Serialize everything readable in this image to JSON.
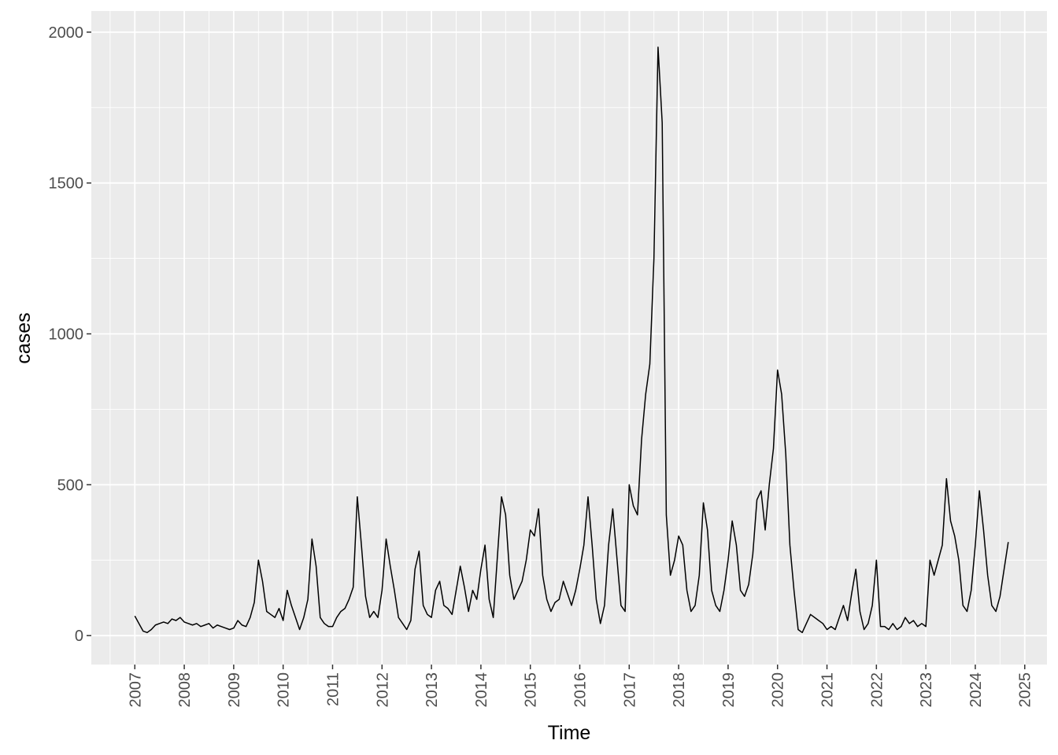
{
  "chart_data": {
    "type": "line",
    "x_label": "Time",
    "y_label": "cases",
    "color": "#000000",
    "grid": true,
    "xlim": [
      2006.12,
      2025.45
    ],
    "ylim": [
      -96,
      2070
    ],
    "xticks": [
      2007,
      2008,
      2009,
      2010,
      2011,
      2012,
      2013,
      2014,
      2015,
      2016,
      2017,
      2018,
      2019,
      2020,
      2021,
      2022,
      2023,
      2024,
      2025
    ],
    "yticks": [
      0,
      500,
      1000,
      1500,
      2000
    ],
    "xticks_minor": [
      2006.5,
      2007.5,
      2008.5,
      2009.5,
      2010.5,
      2011.5,
      2012.5,
      2013.5,
      2014.5,
      2015.5,
      2016.5,
      2017.5,
      2018.5,
      2019.5,
      2020.5,
      2021.5,
      2022.5,
      2023.5,
      2024.5
    ],
    "yticks_minor": [
      250,
      750,
      1250,
      1750
    ],
    "x": [
      2007.0,
      2007.083,
      2007.167,
      2007.25,
      2007.333,
      2007.417,
      2007.5,
      2007.583,
      2007.667,
      2007.75,
      2007.833,
      2007.917,
      2008.0,
      2008.083,
      2008.167,
      2008.25,
      2008.333,
      2008.417,
      2008.5,
      2008.583,
      2008.667,
      2008.75,
      2008.833,
      2008.917,
      2009.0,
      2009.083,
      2009.167,
      2009.25,
      2009.333,
      2009.417,
      2009.5,
      2009.583,
      2009.667,
      2009.75,
      2009.833,
      2009.917,
      2010.0,
      2010.083,
      2010.167,
      2010.25,
      2010.333,
      2010.417,
      2010.5,
      2010.583,
      2010.667,
      2010.75,
      2010.833,
      2010.917,
      2011.0,
      2011.083,
      2011.167,
      2011.25,
      2011.333,
      2011.417,
      2011.5,
      2011.583,
      2011.667,
      2011.75,
      2011.833,
      2011.917,
      2012.0,
      2012.083,
      2012.167,
      2012.25,
      2012.333,
      2012.417,
      2012.5,
      2012.583,
      2012.667,
      2012.75,
      2012.833,
      2012.917,
      2013.0,
      2013.083,
      2013.167,
      2013.25,
      2013.333,
      2013.417,
      2013.5,
      2013.583,
      2013.667,
      2013.75,
      2013.833,
      2013.917,
      2014.0,
      2014.083,
      2014.167,
      2014.25,
      2014.333,
      2014.417,
      2014.5,
      2014.583,
      2014.667,
      2014.75,
      2014.833,
      2014.917,
      2015.0,
      2015.083,
      2015.167,
      2015.25,
      2015.333,
      2015.417,
      2015.5,
      2015.583,
      2015.667,
      2015.75,
      2015.833,
      2015.917,
      2016.0,
      2016.083,
      2016.167,
      2016.25,
      2016.333,
      2016.417,
      2016.5,
      2016.583,
      2016.667,
      2016.75,
      2016.833,
      2016.917,
      2017.0,
      2017.083,
      2017.167,
      2017.25,
      2017.333,
      2017.417,
      2017.5,
      2017.583,
      2017.667,
      2017.75,
      2017.833,
      2017.917,
      2018.0,
      2018.083,
      2018.167,
      2018.25,
      2018.333,
      2018.417,
      2018.5,
      2018.583,
      2018.667,
      2018.75,
      2018.833,
      2018.917,
      2019.0,
      2019.083,
      2019.167,
      2019.25,
      2019.333,
      2019.417,
      2019.5,
      2019.583,
      2019.667,
      2019.75,
      2019.833,
      2019.917,
      2020.0,
      2020.083,
      2020.167,
      2020.25,
      2020.333,
      2020.417,
      2020.5,
      2020.583,
      2020.667,
      2020.75,
      2020.833,
      2020.917,
      2021.0,
      2021.083,
      2021.167,
      2021.25,
      2021.333,
      2021.417,
      2021.5,
      2021.583,
      2021.667,
      2021.75,
      2021.833,
      2021.917,
      2022.0,
      2022.083,
      2022.167,
      2022.25,
      2022.333,
      2022.417,
      2022.5,
      2022.583,
      2022.667,
      2022.75,
      2022.833,
      2022.917,
      2023.0,
      2023.083,
      2023.167,
      2023.25,
      2023.333,
      2023.417,
      2023.5,
      2023.583,
      2023.667,
      2023.75,
      2023.833,
      2023.917,
      2024.0,
      2024.083,
      2024.167,
      2024.25,
      2024.333,
      2024.417,
      2024.5,
      2024.583,
      2024.667
    ],
    "values": [
      65,
      40,
      15,
      10,
      20,
      35,
      40,
      45,
      40,
      55,
      50,
      60,
      45,
      40,
      35,
      40,
      30,
      35,
      40,
      25,
      35,
      30,
      25,
      20,
      25,
      50,
      35,
      30,
      60,
      110,
      250,
      180,
      80,
      70,
      60,
      90,
      50,
      150,
      100,
      60,
      20,
      60,
      120,
      320,
      230,
      60,
      40,
      30,
      30,
      60,
      80,
      90,
      120,
      160,
      460,
      300,
      130,
      60,
      80,
      60,
      150,
      320,
      230,
      150,
      60,
      40,
      20,
      50,
      220,
      280,
      100,
      70,
      60,
      150,
      180,
      100,
      90,
      70,
      150,
      230,
      160,
      80,
      150,
      120,
      220,
      300,
      120,
      60,
      260,
      460,
      400,
      200,
      120,
      150,
      180,
      250,
      350,
      330,
      420,
      200,
      120,
      80,
      110,
      120,
      180,
      140,
      100,
      150,
      220,
      300,
      460,
      300,
      120,
      40,
      100,
      300,
      420,
      260,
      100,
      80,
      500,
      430,
      400,
      650,
      800,
      900,
      1250,
      1950,
      1700,
      400,
      200,
      250,
      330,
      300,
      150,
      80,
      100,
      200,
      440,
      350,
      150,
      100,
      80,
      150,
      250,
      380,
      300,
      150,
      130,
      170,
      270,
      450,
      480,
      350,
      500,
      620,
      880,
      800,
      600,
      300,
      150,
      20,
      10,
      40,
      70,
      60,
      50,
      40,
      20,
      30,
      20,
      60,
      100,
      50,
      140,
      220,
      80,
      20,
      40,
      100,
      250,
      30,
      30,
      20,
      40,
      20,
      30,
      60,
      40,
      50,
      30,
      40,
      30,
      250,
      200,
      250,
      300,
      520,
      380,
      330,
      250,
      100,
      80,
      150,
      300,
      480,
      350,
      200,
      100,
      80,
      130,
      220,
      310
    ]
  }
}
